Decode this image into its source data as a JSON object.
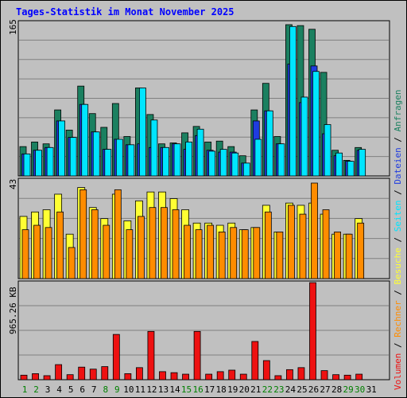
{
  "title": "Tages-Statistik im Monat November 2025",
  "colors": {
    "anfragen": "#1b8060",
    "dateien": "#1f3ce0",
    "seiten": "#00e5ff",
    "besuche": "#ffff33",
    "rechner": "#ff8c00",
    "volumen": "#ee1111",
    "weekend_label": "#008000",
    "weekday_label": "#000000"
  },
  "legend": {
    "volumen": "Volumen",
    "sep1": " / ",
    "rechner": "Rechner",
    "sep2": " / ",
    "besuche": "Besuche",
    "sep3": " / ",
    "seiten": "Seiten",
    "sep4": " / ",
    "dateien": "Dateien",
    "sep5": " / ",
    "anfragen": "Anfragen"
  },
  "chart_data": [
    {
      "type": "bar",
      "panel": "top",
      "ylabel": "165",
      "ymax": 165,
      "categories": [
        "1",
        "2",
        "3",
        "4",
        "5",
        "6",
        "7",
        "8",
        "9",
        "10",
        "11",
        "12",
        "13",
        "14",
        "15",
        "16",
        "17",
        "18",
        "19",
        "20",
        "21",
        "22",
        "23",
        "24",
        "25",
        "26",
        "27",
        "28",
        "29",
        "30"
      ],
      "weekend_days": [
        "1",
        "2",
        "8",
        "9",
        "15",
        "16",
        "22",
        "23",
        "29",
        "30"
      ],
      "series": [
        {
          "name": "Anfragen",
          "values": [
            32,
            37,
            35,
            72,
            50,
            98,
            68,
            53,
            79,
            43,
            96,
            67,
            35,
            36,
            47,
            54,
            37,
            38,
            32,
            22,
            72,
            101,
            43,
            165,
            164,
            160,
            113,
            28,
            17,
            31
          ]
        },
        {
          "name": "Dateien",
          "values": [
            24,
            28,
            31,
            60,
            42,
            78,
            48,
            29,
            40,
            34,
            35,
            31,
            31,
            35,
            29,
            44,
            28,
            26,
            26,
            14,
            60,
            71,
            35,
            122,
            80,
            120,
            46,
            22,
            16,
            28
          ]
        },
        {
          "name": "Seiten",
          "values": [
            24,
            28,
            31,
            60,
            42,
            78,
            48,
            29,
            40,
            34,
            96,
            61,
            31,
            35,
            37,
            51,
            27,
            29,
            25,
            14,
            40,
            71,
            35,
            163,
            86,
            114,
            56,
            25,
            16,
            29
          ]
        }
      ]
    },
    {
      "type": "bar",
      "panel": "middle",
      "ylabel": "43",
      "ymax": 43,
      "categories": [
        "1",
        "2",
        "3",
        "4",
        "5",
        "6",
        "7",
        "8",
        "9",
        "10",
        "11",
        "12",
        "13",
        "14",
        "15",
        "16",
        "17",
        "18",
        "19",
        "20",
        "21",
        "22",
        "23",
        "24",
        "25",
        "26",
        "27",
        "28",
        "29",
        "30"
      ],
      "series": [
        {
          "name": "Besuche",
          "values": [
            28,
            30,
            31,
            38,
            20,
            41,
            32,
            27,
            38,
            26,
            35,
            39,
            39,
            36,
            31,
            25,
            25,
            24,
            25,
            22,
            23,
            33,
            21,
            34,
            33,
            34,
            29,
            20,
            20,
            27
          ]
        },
        {
          "name": "Rechner",
          "values": [
            22,
            24,
            23,
            30,
            14,
            40,
            31,
            24,
            40,
            22,
            28,
            32,
            32,
            31,
            24,
            22,
            24,
            21,
            23,
            22,
            23,
            30,
            21,
            33,
            29,
            43,
            31,
            21,
            20,
            25
          ]
        }
      ]
    },
    {
      "type": "bar",
      "panel": "bottom",
      "ylabel": "965.26 KB",
      "ymax": 965.26,
      "categories": [
        "1",
        "2",
        "3",
        "4",
        "5",
        "6",
        "7",
        "8",
        "9",
        "10",
        "11",
        "12",
        "13",
        "14",
        "15",
        "16",
        "17",
        "18",
        "19",
        "20",
        "21",
        "22",
        "23",
        "24",
        "25",
        "26",
        "27",
        "28",
        "29",
        "30",
        "31"
      ],
      "series": [
        {
          "name": "Volumen",
          "values": [
            45,
            60,
            40,
            150,
            50,
            125,
            105,
            130,
            450,
            60,
            120,
            480,
            80,
            70,
            55,
            480,
            55,
            80,
            95,
            55,
            380,
            190,
            40,
            100,
            120,
            965,
            90,
            50,
            45,
            55,
            0
          ]
        }
      ]
    }
  ]
}
